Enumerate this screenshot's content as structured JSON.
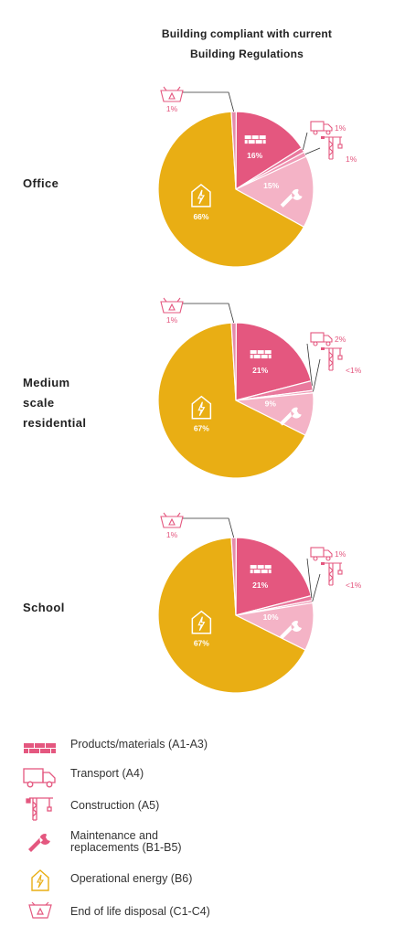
{
  "chart_data": {
    "type": "pie",
    "title": "Building compliant with current Building Regulations",
    "categories": [
      "Products/materials (A1-A3)",
      "Transport (A4)",
      "Construction (A5)",
      "Maintenance and replacements (B1-B5)",
      "Operational energy (B6)",
      "End of life disposal (C1-C4)"
    ],
    "colors": [
      "#e4577f",
      "#e9799d",
      "#f09ab6",
      "#f4b3c6",
      "#e9ae14",
      "#e58cab"
    ],
    "icons": [
      "bricks-icon",
      "truck-icon",
      "crane-icon",
      "wrench-icon",
      "lightning-house-icon",
      "recycle-bin-icon"
    ],
    "pies": [
      {
        "label": "Office",
        "values": [
          16,
          1,
          1,
          15,
          66,
          1
        ],
        "value_labels": [
          "16%",
          "1%",
          "1%",
          "15%",
          "66%",
          "1%"
        ]
      },
      {
        "label": "Medium scale residential",
        "values": [
          21,
          2,
          0.5,
          9,
          67,
          1
        ],
        "value_labels": [
          "21%",
          "2%",
          "<1%",
          "9%",
          "67%",
          "1%"
        ]
      },
      {
        "label": "School",
        "values": [
          21,
          1,
          0.5,
          10,
          67,
          1
        ],
        "value_labels": [
          "21%",
          "1%",
          "<1%",
          "10%",
          "67%",
          "1%"
        ]
      }
    ]
  },
  "row_labels": {
    "office": "Office",
    "residential_line1": "Medium",
    "residential_line2": "scale",
    "residential_line3": "residential",
    "school": "School"
  },
  "title_line1": "Building compliant with current",
  "title_line2": "Building Regulations",
  "legend": [
    {
      "label_line1": "Products/materials (A1-A3)",
      "label_line2": ""
    },
    {
      "label_line1": "Transport (A4)",
      "label_line2": ""
    },
    {
      "label_line1": "Construction (A5)",
      "label_line2": ""
    },
    {
      "label_line1": "Maintenance and",
      "label_line2": "replacements (B1-B5)"
    },
    {
      "label_line1": "Operational energy (B6)",
      "label_line2": ""
    },
    {
      "label_line1": "End of life disposal (C1-C4)",
      "label_line2": ""
    }
  ]
}
